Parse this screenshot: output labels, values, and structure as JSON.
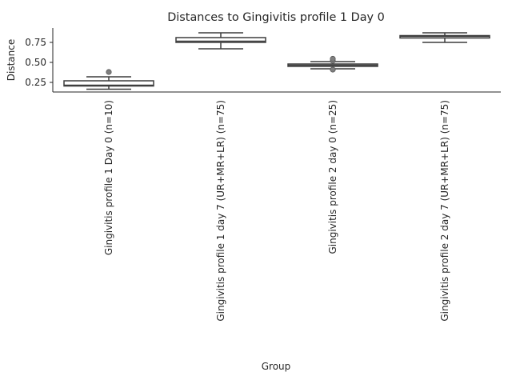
{
  "chart_data": {
    "type": "box",
    "title": "Distances to Gingivitis profile 1 Day 0",
    "xlabel": "Group",
    "ylabel": "Distance",
    "ylim": [
      0.13,
      0.93
    ],
    "yticks": [
      0.25,
      0.5,
      0.75
    ],
    "ytick_labels": [
      "0.25",
      "0.50",
      "0.75"
    ],
    "grid": false,
    "categories": [
      "Gingivitis profile 1 Day 0 (n=10)",
      "Gingivitis profile 1 day 7 (UR+MR+LR) (n=75)",
      "Gingivitis profile 2 day 0 (n=25)",
      "Gingivitis profile 2 day 7 (UR+MR+LR) (n=75)"
    ],
    "boxes": [
      {
        "whislo": 0.165,
        "q1": 0.205,
        "med": 0.215,
        "q3": 0.27,
        "whishi": 0.32,
        "fliers": [
          0.38
        ]
      },
      {
        "whislo": 0.67,
        "q1": 0.75,
        "med": 0.765,
        "q3": 0.81,
        "whishi": 0.87,
        "fliers": []
      },
      {
        "whislo": 0.42,
        "q1": 0.45,
        "med": 0.465,
        "q3": 0.48,
        "whishi": 0.51,
        "fliers": [
          0.41,
          0.52,
          0.545
        ]
      },
      {
        "whislo": 0.75,
        "q1": 0.805,
        "med": 0.825,
        "q3": 0.835,
        "whishi": 0.87,
        "fliers": []
      }
    ]
  }
}
